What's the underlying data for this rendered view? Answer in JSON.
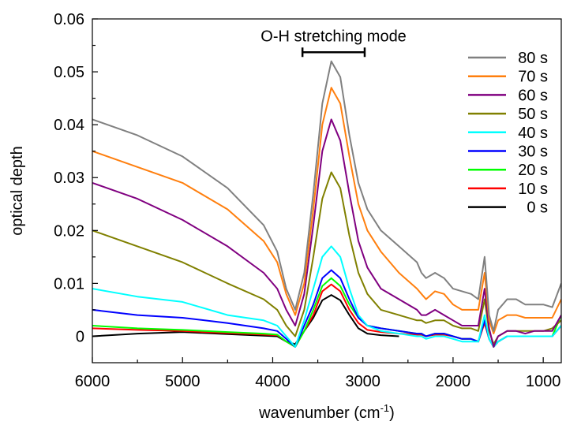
{
  "chart_data": {
    "type": "line",
    "title": "",
    "xlabel": "wavenumber",
    "xlabel_unit": "(cm",
    "xlabel_unit_sup": "-1",
    "xlabel_unit_close": ")",
    "ylabel": "optical depth",
    "xlim": [
      6000,
      800
    ],
    "ylim": [
      -0.005,
      0.06
    ],
    "x_reversed": true,
    "grid": false,
    "legend_position": "top-right",
    "x_ticks": [
      {
        "value": 6000,
        "label": "6000"
      },
      {
        "value": 5000,
        "label": "5000"
      },
      {
        "value": 4000,
        "label": "4000"
      },
      {
        "value": 3000,
        "label": "3000"
      },
      {
        "value": 2000,
        "label": "2000"
      },
      {
        "value": 1000,
        "label": "1000"
      }
    ],
    "y_ticks": [
      {
        "value": 0,
        "label": "0"
      },
      {
        "value": 0.01,
        "label": "0.01"
      },
      {
        "value": 0.02,
        "label": "0.02"
      },
      {
        "value": 0.03,
        "label": "0.03"
      },
      {
        "value": 0.04,
        "label": "0.04"
      },
      {
        "value": 0.05,
        "label": "0.05"
      },
      {
        "value": 0.06,
        "label": "0.06"
      }
    ],
    "annotation": {
      "text": "O-H stretching mode",
      "x_range": [
        3670,
        2980
      ],
      "y": 0.0537
    },
    "series": [
      {
        "name": "80 s",
        "color": "#808080",
        "x": [
          6000,
          5500,
          5000,
          4500,
          4100,
          3950,
          3850,
          3750,
          3650,
          3550,
          3450,
          3350,
          3250,
          3150,
          3050,
          2950,
          2800,
          2600,
          2400,
          2350,
          2300,
          2200,
          2100,
          2000,
          1900,
          1800,
          1720,
          1650,
          1600,
          1550,
          1500,
          1400,
          1300,
          1200,
          1100,
          1000,
          900,
          800
        ],
        "y": [
          0.041,
          0.038,
          0.034,
          0.028,
          0.021,
          0.016,
          0.009,
          0.005,
          0.012,
          0.027,
          0.044,
          0.052,
          0.049,
          0.038,
          0.029,
          0.024,
          0.02,
          0.017,
          0.014,
          0.012,
          0.011,
          0.012,
          0.011,
          0.009,
          0.0085,
          0.008,
          0.007,
          0.015,
          0.004,
          0.001,
          0.005,
          0.007,
          0.007,
          0.006,
          0.006,
          0.006,
          0.0055,
          0.01
        ]
      },
      {
        "name": "70 s",
        "color": "#ff7f0e",
        "x": [
          6000,
          5500,
          5000,
          4500,
          4100,
          3950,
          3850,
          3750,
          3650,
          3550,
          3450,
          3350,
          3250,
          3150,
          3050,
          2950,
          2800,
          2600,
          2400,
          2350,
          2300,
          2200,
          2100,
          2000,
          1900,
          1800,
          1720,
          1650,
          1600,
          1550,
          1500,
          1400,
          1300,
          1200,
          1100,
          1000,
          900,
          800
        ],
        "y": [
          0.035,
          0.032,
          0.029,
          0.024,
          0.018,
          0.014,
          0.008,
          0.004,
          0.01,
          0.024,
          0.04,
          0.047,
          0.044,
          0.034,
          0.025,
          0.02,
          0.016,
          0.012,
          0.009,
          0.008,
          0.007,
          0.0085,
          0.008,
          0.006,
          0.005,
          0.005,
          0.005,
          0.012,
          0.003,
          0.0005,
          0.003,
          0.004,
          0.004,
          0.0035,
          0.0035,
          0.0035,
          0.0035,
          0.007
        ]
      },
      {
        "name": "60 s",
        "color": "#800080",
        "x": [
          6000,
          5500,
          5000,
          4500,
          4100,
          3950,
          3850,
          3750,
          3650,
          3550,
          3450,
          3350,
          3250,
          3150,
          3050,
          2950,
          2800,
          2600,
          2400,
          2350,
          2300,
          2200,
          2100,
          2000,
          1900,
          1800,
          1720,
          1650,
          1600,
          1550,
          1500,
          1400,
          1300,
          1200,
          1100,
          1000,
          900,
          800
        ],
        "y": [
          0.029,
          0.026,
          0.022,
          0.017,
          0.012,
          0.009,
          0.005,
          0.002,
          0.008,
          0.021,
          0.035,
          0.041,
          0.037,
          0.027,
          0.018,
          0.013,
          0.009,
          0.007,
          0.005,
          0.004,
          0.004,
          0.005,
          0.004,
          0.003,
          0.002,
          0.002,
          0.002,
          0.009,
          0.0015,
          -0.002,
          0.0,
          0.001,
          0.001,
          0.0005,
          0.001,
          0.001,
          0.001,
          0.004
        ]
      },
      {
        "name": "50 s",
        "color": "#808000",
        "x": [
          6000,
          5500,
          5000,
          4500,
          4100,
          3950,
          3850,
          3750,
          3650,
          3550,
          3450,
          3350,
          3250,
          3150,
          3050,
          2950,
          2800,
          2600,
          2400,
          2350,
          2300,
          2200,
          2100,
          2000,
          1900,
          1800,
          1720,
          1650,
          1600,
          1550,
          1500,
          1400,
          1300,
          1200,
          1100,
          1000,
          900,
          800
        ],
        "y": [
          0.02,
          0.017,
          0.014,
          0.01,
          0.007,
          0.005,
          0.002,
          0.0,
          0.005,
          0.015,
          0.026,
          0.031,
          0.028,
          0.019,
          0.012,
          0.008,
          0.005,
          0.004,
          0.003,
          0.003,
          0.0025,
          0.003,
          0.003,
          0.002,
          0.0015,
          0.0015,
          0.001,
          0.007,
          0.001,
          -0.0015,
          0.0,
          0.001,
          0.001,
          0.001,
          0.001,
          0.001,
          0.0015,
          0.003
        ]
      },
      {
        "name": "40 s",
        "color": "#00ffff",
        "x": [
          6000,
          5500,
          5000,
          4500,
          4100,
          3950,
          3850,
          3750,
          3650,
          3550,
          3450,
          3350,
          3250,
          3150,
          3050,
          2950,
          2800,
          2600,
          2400,
          2350,
          2300,
          2200,
          2100,
          2000,
          1900,
          1800,
          1720,
          1650,
          1600,
          1550,
          1500,
          1400,
          1300,
          1200,
          1100,
          1000,
          900,
          800
        ],
        "y": [
          0.009,
          0.0075,
          0.0065,
          0.004,
          0.003,
          0.002,
          0.0,
          -0.002,
          0.003,
          0.009,
          0.015,
          0.017,
          0.015,
          0.009,
          0.004,
          0.002,
          0.001,
          0.0005,
          0.0,
          0.0,
          -0.0005,
          0.0,
          0.0,
          -0.0005,
          -0.001,
          -0.001,
          -0.001,
          0.004,
          -0.0005,
          -0.002,
          -0.001,
          0.0,
          0.0,
          0.0,
          0.0,
          0.0,
          0.0,
          0.002
        ]
      },
      {
        "name": "30 s",
        "color": "#0000ff",
        "x": [
          6000,
          5500,
          5000,
          4500,
          4100,
          3950,
          3850,
          3750,
          3650,
          3550,
          3450,
          3350,
          3250,
          3150,
          3050,
          2950,
          2800,
          2600,
          2400,
          2350,
          2300,
          2200,
          2100,
          2000,
          1900,
          1800,
          1720,
          1650,
          1600,
          1550,
          1500,
          1400,
          1300,
          1200,
          1100,
          1000,
          900,
          800
        ],
        "y": [
          0.005,
          0.004,
          0.0035,
          0.0025,
          0.0015,
          0.001,
          -0.0005,
          -0.002,
          0.002,
          0.006,
          0.011,
          0.0125,
          0.011,
          0.007,
          0.0035,
          0.002,
          0.0015,
          0.001,
          0.0005,
          0.0005,
          0.0,
          0.0005,
          0.0005,
          0.0,
          -0.0005,
          -0.0005,
          -0.001,
          0.003,
          -0.0005,
          -0.002,
          -0.001,
          0.0,
          0.0,
          0.0,
          0.0,
          0.0,
          0.0,
          0.002
        ]
      },
      {
        "name": "20 s",
        "color": "#00ff00",
        "x": [
          6000,
          5500,
          5000,
          4500,
          4100,
          3950,
          3850,
          3750,
          3650,
          3550,
          3450,
          3350,
          3250,
          3150,
          3050,
          2950,
          2800,
          2600,
          2400,
          2350,
          2300,
          2200,
          2100,
          2000,
          1900,
          1800,
          1720,
          1650,
          1600,
          1550,
          1500,
          1400,
          1300,
          1200,
          1100,
          1000,
          900,
          800
        ],
        "y": [
          0.002,
          0.0015,
          0.0012,
          0.0008,
          0.0005,
          0.0003,
          -0.001,
          -0.002,
          0.001,
          0.005,
          0.0095,
          0.011,
          0.0095,
          0.006,
          0.0035,
          0.002,
          0.0015,
          0.001,
          0.0005,
          0.0005,
          0.0,
          0.0005,
          0.0005,
          0.0,
          -0.0005,
          -0.0005,
          -0.001,
          0.003,
          -0.0005,
          -0.002,
          -0.001,
          0.0,
          0.0,
          0.0,
          0.0,
          0.0,
          0.0,
          0.004
        ]
      },
      {
        "name": "10 s",
        "color": "#ff0000",
        "x": [
          6000,
          5500,
          5000,
          4500,
          4100,
          3950,
          3850,
          3750,
          3650,
          3550,
          3450,
          3350,
          3250,
          3150,
          3050,
          2950,
          2800,
          2600,
          2400,
          2350,
          2300,
          2200,
          2100,
          2000,
          1900,
          1800,
          1720,
          1650,
          1600,
          1550,
          1500,
          1400,
          1300,
          1200,
          1100,
          1000,
          900,
          800
        ],
        "y": [
          0.0015,
          0.0012,
          0.001,
          0.0006,
          0.0003,
          0.0002,
          -0.001,
          -0.002,
          0.001,
          0.004,
          0.0085,
          0.0098,
          0.0085,
          0.005,
          0.0025,
          0.0012,
          0.0008,
          0.0005,
          0.0003,
          0.0003,
          0.0,
          0.0003,
          0.0003,
          0.0,
          -0.0005,
          -0.0005,
          -0.001,
          0.0025,
          -0.0005,
          -0.002,
          -0.001,
          0.0,
          0.0,
          0.0,
          0.0,
          0.0,
          0.0,
          0.002
        ]
      },
      {
        "name": "0 s",
        "color": "#000000",
        "x": [
          6000,
          5500,
          5000,
          4500,
          4100,
          3950,
          3850,
          3750,
          3650,
          3550,
          3450,
          3350,
          3250,
          3150,
          3050,
          2950,
          2800,
          2600
        ],
        "y": [
          0.0,
          0.0005,
          0.0008,
          0.0004,
          0.0001,
          0.0,
          -0.001,
          -0.0015,
          0.001,
          0.0035,
          0.0068,
          0.0078,
          0.0068,
          0.004,
          0.0015,
          0.0005,
          0.0002,
          0.0
        ]
      }
    ]
  }
}
